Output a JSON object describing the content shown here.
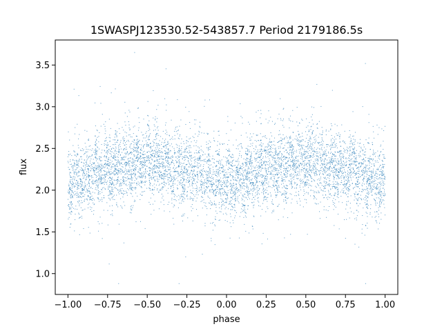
{
  "chart_data": {
    "type": "scatter",
    "title": "1SWASPJ123530.52-543857.7 Period 2179186.5s",
    "xlabel": "phase",
    "ylabel": "flux",
    "xlim": [
      -1.08,
      1.08
    ],
    "ylim": [
      0.75,
      3.8
    ],
    "xticks": [
      -1.0,
      -0.75,
      -0.5,
      -0.25,
      0.0,
      0.25,
      0.5,
      0.75,
      1.0
    ],
    "xtick_labels": [
      "−1.00",
      "−0.75",
      "−0.50",
      "−0.25",
      "0.00",
      "0.25",
      "0.50",
      "0.75",
      "1.00"
    ],
    "yticks": [
      1.0,
      1.5,
      2.0,
      2.5,
      3.0,
      3.5
    ],
    "ytick_labels": [
      "1.0",
      "1.5",
      "2.0",
      "2.5",
      "3.0",
      "3.5"
    ],
    "grid": false,
    "marker_color": "#1f77b4",
    "series": [
      {
        "phase_range": [
          -1.0,
          1.0
        ],
        "flux_envelope": {
          "x": [
            -1.0,
            -0.75,
            -0.5,
            -0.25,
            0.0,
            0.25,
            0.5,
            0.75,
            1.0
          ],
          "median": [
            2.1,
            2.25,
            2.35,
            2.25,
            2.1,
            2.25,
            2.35,
            2.25,
            2.1
          ]
        },
        "flux_range": [
          0.88,
          3.65
        ]
      }
    ]
  }
}
